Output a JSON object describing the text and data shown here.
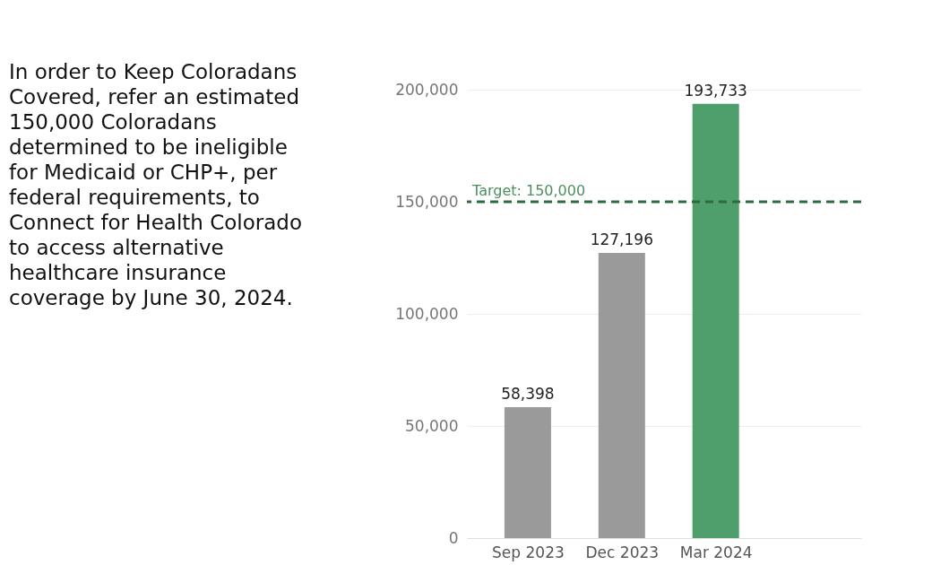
{
  "chart_data": {
    "type": "bar",
    "annotations": [
      "In order to Keep Coloradans Covered, refer an estimated 150,000 Coloradans determined to be ineligible for Medicaid or CHP+, per federal requirements, to Connect for Health Colorado to access alternative healthcare insurance coverage by June 30, 2024."
    ],
    "categories": [
      "Sep 2023",
      "Dec 2023",
      "Mar 2024"
    ],
    "values": [
      58398,
      127196,
      193733
    ],
    "colors": [
      "#9a9a9a",
      "#9a9a9a",
      "#4f9f6c"
    ],
    "ylim": [
      0,
      200000
    ],
    "yticks": [
      0,
      {
        "value": 50000,
        "label": "50,000"
      },
      {
        "value": 100000,
        "label": "100,000"
      },
      {
        "value": 150000,
        "label": "150,000"
      },
      {
        "value": 200000,
        "label": "200,000"
      }
    ],
    "value_labels": [
      "58,398",
      "127,196",
      "193,733"
    ],
    "grid": "y",
    "ref_lines": [
      {
        "axis": "y",
        "value": 150000,
        "label": "Target: 150,000",
        "color": "#2e6b40",
        "line_style": "dashed"
      }
    ]
  }
}
